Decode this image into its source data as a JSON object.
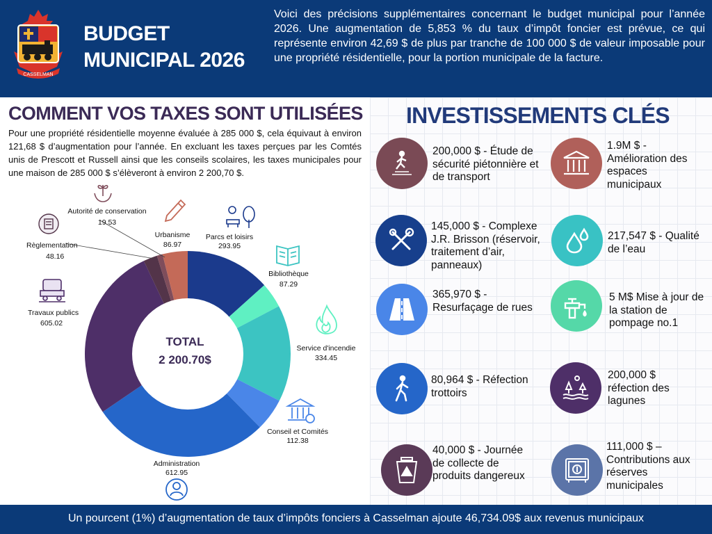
{
  "header": {
    "title_line1": "BUDGET",
    "title_line2": "MUNICIPAL 2026",
    "crest_text": "CASSELMAN",
    "intro": "Voici des précisions supplémentaires concernant le budget municipal pour l’année 2026. Une augmentation de 5,853 % du taux d’impôt foncier est prévue, ce qui représente environ 42,69 $ de plus par tranche de 100 000 $ de valeur imposable pour une propriété résidentielle, pour la portion municipale de la facture."
  },
  "taxes": {
    "title": "COMMENT VOS TAXES SONT UTILISÉES",
    "description": "Pour une propriété résidentielle moyenne évaluée à 285 000 $, cela équivaut à environ 121,68 $ d’augmentation pour l’année. En excluant les taxes perçues par les Comtés unis de Prescott et Russell ainsi que les conseils scolaires, les taxes municipales pour une maison de 285 000 $ s’élèveront à environ 2 200,70 $."
  },
  "chart_data": {
    "type": "pie",
    "variant": "donut",
    "center_label": "TOTAL",
    "center_value": "2 200.70$",
    "categories": [
      "Parcs et loisirs",
      "Bibliothèque",
      "Service d'incendie",
      "Conseil et Comités",
      "Administration",
      "Travaux publics",
      "Règlementation",
      "Autorité de conservation",
      "Urbanisme"
    ],
    "values": [
      293.95,
      87.29,
      334.45,
      112.38,
      612.95,
      605.02,
      48.16,
      19.53,
      86.97
    ],
    "value_labels": [
      "293.95",
      "87.29",
      "334.45",
      "112.38",
      "612.95",
      "605.02",
      "48.16",
      "19.53",
      "86.97"
    ],
    "colors": [
      "#1b3a8c",
      "#5ff0c2",
      "#3cc4c2",
      "#4a86e8",
      "#2566c9",
      "#4e2f68",
      "#533449",
      "#7f4d5b",
      "#c46a58"
    ],
    "icons": [
      "park-icon",
      "book-icon",
      "flame-icon",
      "building-icon",
      "person-gear-icon",
      "truck-icon",
      "document-icon",
      "hands-plant-icon",
      "pencil-icon"
    ]
  },
  "investments": {
    "title": "INVESTISSEMENTS CLÉS",
    "items": [
      {
        "text": "200,000 $ - Étude de sécurité piétonnière et de transport",
        "icon": "crosswalk-icon",
        "color": "#7a4a55"
      },
      {
        "text": "1.9M $ - Amélioration des espaces municipaux",
        "icon": "town-hall-icon",
        "color": "#b0605a"
      },
      {
        "text": "145,000 $ - Complexe J.R. Brisson (réservoir, traitement d’air, panneaux)",
        "icon": "tools-icon",
        "color": "#173f8c"
      },
      {
        "text": "217,547 $ - Qualité de l’eau",
        "icon": "water-drops-icon",
        "color": "#39c2c4"
      },
      {
        "text": "365,970 $ - Resurfaçage de rues",
        "icon": "road-icon",
        "color": "#4a86e8"
      },
      {
        "text": "5 M$ Mise à jour de la station de pompage no.1",
        "icon": "faucet-icon",
        "color": "#55d8a8"
      },
      {
        "text": "80,964 $ - Réfection trottoirs",
        "icon": "walking-icon",
        "color": "#2566c9"
      },
      {
        "text": "200,000 $ réfection des lagunes",
        "icon": "lagoon-icon",
        "color": "#4e2f68"
      },
      {
        "text": "40,000 $ - Journée de collecte de produits dangereux",
        "icon": "hazard-bin-icon",
        "color": "#5a3a57"
      },
      {
        "text": "111,000 $ – Contributions aux réserves municipales",
        "icon": "safe-icon",
        "color": "#5b74a8"
      }
    ]
  },
  "footer": {
    "text": "Un pourcent (1%) d’augmentation de taux d’impôts fonciers à Casselman ajoute 46,734.09$ aux revenus municipaux"
  }
}
